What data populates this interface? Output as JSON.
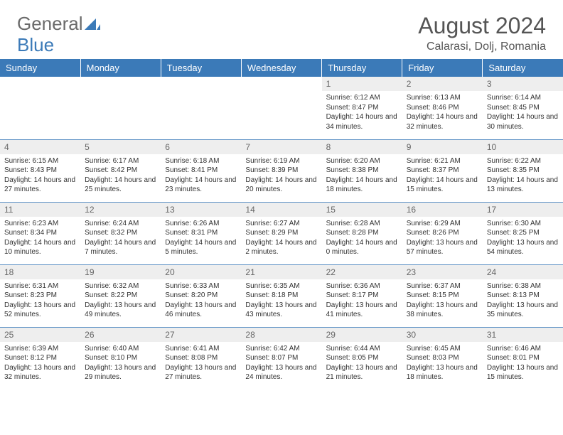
{
  "logo": {
    "text_a": "General",
    "text_b": "Blue"
  },
  "header": {
    "month": "August 2024",
    "location": "Calarasi, Dolj, Romania"
  },
  "colors": {
    "header_bg": "#3b7ab8",
    "header_text": "#ffffff",
    "daynum_bg": "#eeeeee",
    "body_text": "#333333",
    "title_text": "#555555",
    "row_border": "#5a8fc4"
  },
  "weekdays": [
    "Sunday",
    "Monday",
    "Tuesday",
    "Wednesday",
    "Thursday",
    "Friday",
    "Saturday"
  ],
  "weeks": [
    [
      null,
      null,
      null,
      null,
      {
        "n": "1",
        "sr": "6:12 AM",
        "ss": "8:47 PM",
        "dl": "14 hours and 34 minutes."
      },
      {
        "n": "2",
        "sr": "6:13 AM",
        "ss": "8:46 PM",
        "dl": "14 hours and 32 minutes."
      },
      {
        "n": "3",
        "sr": "6:14 AM",
        "ss": "8:45 PM",
        "dl": "14 hours and 30 minutes."
      }
    ],
    [
      {
        "n": "4",
        "sr": "6:15 AM",
        "ss": "8:43 PM",
        "dl": "14 hours and 27 minutes."
      },
      {
        "n": "5",
        "sr": "6:17 AM",
        "ss": "8:42 PM",
        "dl": "14 hours and 25 minutes."
      },
      {
        "n": "6",
        "sr": "6:18 AM",
        "ss": "8:41 PM",
        "dl": "14 hours and 23 minutes."
      },
      {
        "n": "7",
        "sr": "6:19 AM",
        "ss": "8:39 PM",
        "dl": "14 hours and 20 minutes."
      },
      {
        "n": "8",
        "sr": "6:20 AM",
        "ss": "8:38 PM",
        "dl": "14 hours and 18 minutes."
      },
      {
        "n": "9",
        "sr": "6:21 AM",
        "ss": "8:37 PM",
        "dl": "14 hours and 15 minutes."
      },
      {
        "n": "10",
        "sr": "6:22 AM",
        "ss": "8:35 PM",
        "dl": "14 hours and 13 minutes."
      }
    ],
    [
      {
        "n": "11",
        "sr": "6:23 AM",
        "ss": "8:34 PM",
        "dl": "14 hours and 10 minutes."
      },
      {
        "n": "12",
        "sr": "6:24 AM",
        "ss": "8:32 PM",
        "dl": "14 hours and 7 minutes."
      },
      {
        "n": "13",
        "sr": "6:26 AM",
        "ss": "8:31 PM",
        "dl": "14 hours and 5 minutes."
      },
      {
        "n": "14",
        "sr": "6:27 AM",
        "ss": "8:29 PM",
        "dl": "14 hours and 2 minutes."
      },
      {
        "n": "15",
        "sr": "6:28 AM",
        "ss": "8:28 PM",
        "dl": "14 hours and 0 minutes."
      },
      {
        "n": "16",
        "sr": "6:29 AM",
        "ss": "8:26 PM",
        "dl": "13 hours and 57 minutes."
      },
      {
        "n": "17",
        "sr": "6:30 AM",
        "ss": "8:25 PM",
        "dl": "13 hours and 54 minutes."
      }
    ],
    [
      {
        "n": "18",
        "sr": "6:31 AM",
        "ss": "8:23 PM",
        "dl": "13 hours and 52 minutes."
      },
      {
        "n": "19",
        "sr": "6:32 AM",
        "ss": "8:22 PM",
        "dl": "13 hours and 49 minutes."
      },
      {
        "n": "20",
        "sr": "6:33 AM",
        "ss": "8:20 PM",
        "dl": "13 hours and 46 minutes."
      },
      {
        "n": "21",
        "sr": "6:35 AM",
        "ss": "8:18 PM",
        "dl": "13 hours and 43 minutes."
      },
      {
        "n": "22",
        "sr": "6:36 AM",
        "ss": "8:17 PM",
        "dl": "13 hours and 41 minutes."
      },
      {
        "n": "23",
        "sr": "6:37 AM",
        "ss": "8:15 PM",
        "dl": "13 hours and 38 minutes."
      },
      {
        "n": "24",
        "sr": "6:38 AM",
        "ss": "8:13 PM",
        "dl": "13 hours and 35 minutes."
      }
    ],
    [
      {
        "n": "25",
        "sr": "6:39 AM",
        "ss": "8:12 PM",
        "dl": "13 hours and 32 minutes."
      },
      {
        "n": "26",
        "sr": "6:40 AM",
        "ss": "8:10 PM",
        "dl": "13 hours and 29 minutes."
      },
      {
        "n": "27",
        "sr": "6:41 AM",
        "ss": "8:08 PM",
        "dl": "13 hours and 27 minutes."
      },
      {
        "n": "28",
        "sr": "6:42 AM",
        "ss": "8:07 PM",
        "dl": "13 hours and 24 minutes."
      },
      {
        "n": "29",
        "sr": "6:44 AM",
        "ss": "8:05 PM",
        "dl": "13 hours and 21 minutes."
      },
      {
        "n": "30",
        "sr": "6:45 AM",
        "ss": "8:03 PM",
        "dl": "13 hours and 18 minutes."
      },
      {
        "n": "31",
        "sr": "6:46 AM",
        "ss": "8:01 PM",
        "dl": "13 hours and 15 minutes."
      }
    ]
  ]
}
